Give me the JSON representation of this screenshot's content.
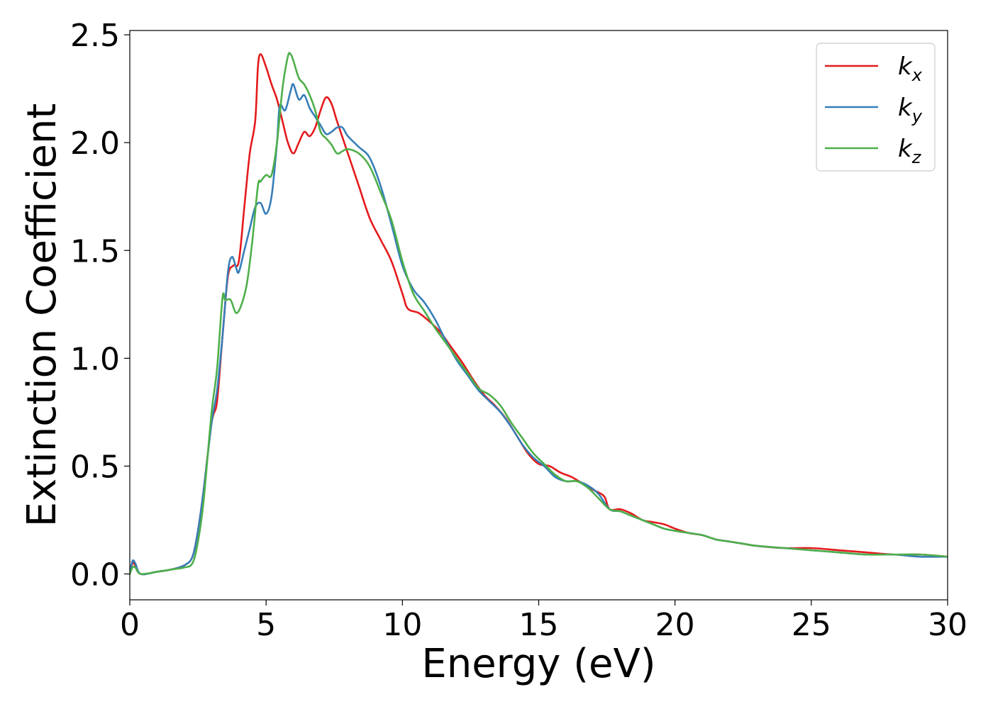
{
  "chart_data": {
    "type": "line",
    "xlabel": "Energy (eV)",
    "ylabel": "Extinction Coefficient",
    "xlim": [
      0,
      30
    ],
    "ylim": [
      -0.12,
      2.52
    ],
    "xticks": [
      0,
      5,
      10,
      15,
      20,
      25,
      30
    ],
    "yticks": [
      0.0,
      0.5,
      1.0,
      1.5,
      2.0,
      2.5
    ],
    "xtick_labels": [
      "0",
      "5",
      "10",
      "15",
      "20",
      "25",
      "30"
    ],
    "ytick_labels": [
      "0.0",
      "0.5",
      "1.0",
      "1.5",
      "2.0",
      "2.5"
    ],
    "grid": false,
    "legend_position": "top-right",
    "series": [
      {
        "name": "k",
        "subscript": "x",
        "color": "#e41a1c",
        "points": [
          [
            0,
            0.0
          ],
          [
            0.1,
            0.05
          ],
          [
            0.2,
            0.04
          ],
          [
            0.4,
            0.0
          ],
          [
            1,
            0.01
          ],
          [
            1.5,
            0.02
          ],
          [
            2,
            0.04
          ],
          [
            2.3,
            0.08
          ],
          [
            2.5,
            0.2
          ],
          [
            2.7,
            0.38
          ],
          [
            3.0,
            0.7
          ],
          [
            3.2,
            0.8
          ],
          [
            3.4,
            1.1
          ],
          [
            3.6,
            1.38
          ],
          [
            3.8,
            1.43
          ],
          [
            4.0,
            1.45
          ],
          [
            4.2,
            1.7
          ],
          [
            4.4,
            1.95
          ],
          [
            4.6,
            2.1
          ],
          [
            4.7,
            2.35
          ],
          [
            4.8,
            2.41
          ],
          [
            5.0,
            2.35
          ],
          [
            5.2,
            2.27
          ],
          [
            5.4,
            2.2
          ],
          [
            5.6,
            2.1
          ],
          [
            5.8,
            2.0
          ],
          [
            6.0,
            1.95
          ],
          [
            6.2,
            2.0
          ],
          [
            6.4,
            2.05
          ],
          [
            6.6,
            2.03
          ],
          [
            6.8,
            2.07
          ],
          [
            7.0,
            2.15
          ],
          [
            7.2,
            2.21
          ],
          [
            7.4,
            2.18
          ],
          [
            7.6,
            2.1
          ],
          [
            8.0,
            1.95
          ],
          [
            8.4,
            1.8
          ],
          [
            8.8,
            1.65
          ],
          [
            9.2,
            1.55
          ],
          [
            9.6,
            1.45
          ],
          [
            10.0,
            1.3
          ],
          [
            10.2,
            1.23
          ],
          [
            10.6,
            1.21
          ],
          [
            11.0,
            1.17
          ],
          [
            11.4,
            1.12
          ],
          [
            11.8,
            1.05
          ],
          [
            12.2,
            0.98
          ],
          [
            12.6,
            0.9
          ],
          [
            13.0,
            0.83
          ],
          [
            13.4,
            0.78
          ],
          [
            13.8,
            0.72
          ],
          [
            14.2,
            0.64
          ],
          [
            14.6,
            0.56
          ],
          [
            15.0,
            0.51
          ],
          [
            15.4,
            0.5
          ],
          [
            15.8,
            0.47
          ],
          [
            16.2,
            0.45
          ],
          [
            16.6,
            0.42
          ],
          [
            17.0,
            0.39
          ],
          [
            17.4,
            0.36
          ],
          [
            17.6,
            0.3
          ],
          [
            18.0,
            0.3
          ],
          [
            18.4,
            0.28
          ],
          [
            18.8,
            0.25
          ],
          [
            19.2,
            0.24
          ],
          [
            19.6,
            0.23
          ],
          [
            20.0,
            0.21
          ],
          [
            20.5,
            0.19
          ],
          [
            21.0,
            0.18
          ],
          [
            21.5,
            0.16
          ],
          [
            22.0,
            0.15
          ],
          [
            22.5,
            0.14
          ],
          [
            23.0,
            0.13
          ],
          [
            24.0,
            0.12
          ],
          [
            25.0,
            0.12
          ],
          [
            26.0,
            0.11
          ],
          [
            27.0,
            0.1
          ],
          [
            28.0,
            0.09
          ],
          [
            29.0,
            0.09
          ],
          [
            30.0,
            0.08
          ]
        ]
      },
      {
        "name": "k",
        "subscript": "y",
        "color": "#377eb8",
        "points": [
          [
            0,
            0.0
          ],
          [
            0.1,
            0.06
          ],
          [
            0.2,
            0.05
          ],
          [
            0.4,
            0.0
          ],
          [
            1,
            0.01
          ],
          [
            1.5,
            0.02
          ],
          [
            2,
            0.04
          ],
          [
            2.3,
            0.08
          ],
          [
            2.5,
            0.2
          ],
          [
            2.7,
            0.38
          ],
          [
            3.0,
            0.7
          ],
          [
            3.2,
            0.85
          ],
          [
            3.4,
            1.1
          ],
          [
            3.6,
            1.4
          ],
          [
            3.75,
            1.47
          ],
          [
            3.9,
            1.42
          ],
          [
            4.0,
            1.4
          ],
          [
            4.2,
            1.5
          ],
          [
            4.4,
            1.6
          ],
          [
            4.6,
            1.7
          ],
          [
            4.8,
            1.72
          ],
          [
            5.0,
            1.67
          ],
          [
            5.2,
            1.75
          ],
          [
            5.4,
            2.0
          ],
          [
            5.5,
            2.17
          ],
          [
            5.7,
            2.15
          ],
          [
            5.9,
            2.24
          ],
          [
            6.0,
            2.27
          ],
          [
            6.2,
            2.2
          ],
          [
            6.4,
            2.22
          ],
          [
            6.6,
            2.16
          ],
          [
            6.8,
            2.12
          ],
          [
            7.0,
            2.08
          ],
          [
            7.2,
            2.04
          ],
          [
            7.4,
            2.05
          ],
          [
            7.6,
            2.07
          ],
          [
            7.8,
            2.07
          ],
          [
            8.0,
            2.03
          ],
          [
            8.4,
            1.98
          ],
          [
            8.8,
            1.93
          ],
          [
            9.2,
            1.8
          ],
          [
            9.6,
            1.62
          ],
          [
            10.0,
            1.43
          ],
          [
            10.4,
            1.32
          ],
          [
            10.8,
            1.26
          ],
          [
            11.2,
            1.18
          ],
          [
            11.6,
            1.08
          ],
          [
            12.0,
            0.99
          ],
          [
            12.4,
            0.92
          ],
          [
            12.8,
            0.85
          ],
          [
            13.2,
            0.8
          ],
          [
            13.6,
            0.75
          ],
          [
            14.0,
            0.68
          ],
          [
            14.4,
            0.6
          ],
          [
            14.8,
            0.54
          ],
          [
            15.2,
            0.5
          ],
          [
            15.6,
            0.45
          ],
          [
            16.0,
            0.43
          ],
          [
            16.4,
            0.43
          ],
          [
            16.8,
            0.41
          ],
          [
            17.2,
            0.37
          ],
          [
            17.6,
            0.3
          ],
          [
            18.0,
            0.29
          ],
          [
            18.4,
            0.27
          ],
          [
            18.8,
            0.25
          ],
          [
            19.2,
            0.23
          ],
          [
            19.6,
            0.21
          ],
          [
            20.0,
            0.2
          ],
          [
            20.5,
            0.19
          ],
          [
            21.0,
            0.18
          ],
          [
            21.5,
            0.16
          ],
          [
            22.0,
            0.15
          ],
          [
            22.5,
            0.14
          ],
          [
            23.0,
            0.13
          ],
          [
            24.0,
            0.12
          ],
          [
            25.0,
            0.11
          ],
          [
            26.0,
            0.1
          ],
          [
            27.0,
            0.09
          ],
          [
            28.0,
            0.09
          ],
          [
            29.0,
            0.08
          ],
          [
            30.0,
            0.08
          ]
        ]
      },
      {
        "name": "k",
        "subscript": "z",
        "color": "#4daf4a",
        "points": [
          [
            0,
            0.0
          ],
          [
            0.1,
            0.03
          ],
          [
            0.2,
            0.03
          ],
          [
            0.4,
            0.0
          ],
          [
            1,
            0.01
          ],
          [
            1.5,
            0.02
          ],
          [
            2,
            0.03
          ],
          [
            2.3,
            0.05
          ],
          [
            2.5,
            0.15
          ],
          [
            2.7,
            0.33
          ],
          [
            3.0,
            0.75
          ],
          [
            3.2,
            0.95
          ],
          [
            3.4,
            1.28
          ],
          [
            3.5,
            1.27
          ],
          [
            3.7,
            1.27
          ],
          [
            3.9,
            1.21
          ],
          [
            4.1,
            1.25
          ],
          [
            4.3,
            1.35
          ],
          [
            4.5,
            1.55
          ],
          [
            4.7,
            1.8
          ],
          [
            4.8,
            1.82
          ],
          [
            5.0,
            1.85
          ],
          [
            5.2,
            1.85
          ],
          [
            5.4,
            2.0
          ],
          [
            5.6,
            2.25
          ],
          [
            5.8,
            2.4
          ],
          [
            5.9,
            2.41
          ],
          [
            6.0,
            2.38
          ],
          [
            6.2,
            2.3
          ],
          [
            6.4,
            2.27
          ],
          [
            6.6,
            2.22
          ],
          [
            6.8,
            2.15
          ],
          [
            7.0,
            2.05
          ],
          [
            7.2,
            2.02
          ],
          [
            7.4,
            1.99
          ],
          [
            7.6,
            1.95
          ],
          [
            7.8,
            1.96
          ],
          [
            8.0,
            1.97
          ],
          [
            8.4,
            1.95
          ],
          [
            8.8,
            1.89
          ],
          [
            9.2,
            1.77
          ],
          [
            9.6,
            1.64
          ],
          [
            10.0,
            1.45
          ],
          [
            10.4,
            1.3
          ],
          [
            10.8,
            1.22
          ],
          [
            11.2,
            1.14
          ],
          [
            11.6,
            1.07
          ],
          [
            12.0,
            1.0
          ],
          [
            12.4,
            0.93
          ],
          [
            12.8,
            0.86
          ],
          [
            13.2,
            0.83
          ],
          [
            13.6,
            0.78
          ],
          [
            14.0,
            0.7
          ],
          [
            14.4,
            0.63
          ],
          [
            14.8,
            0.56
          ],
          [
            15.2,
            0.51
          ],
          [
            15.6,
            0.46
          ],
          [
            16.0,
            0.43
          ],
          [
            16.4,
            0.43
          ],
          [
            16.8,
            0.4
          ],
          [
            17.2,
            0.35
          ],
          [
            17.6,
            0.3
          ],
          [
            18.0,
            0.29
          ],
          [
            18.4,
            0.27
          ],
          [
            18.8,
            0.25
          ],
          [
            19.2,
            0.23
          ],
          [
            19.6,
            0.21
          ],
          [
            20.0,
            0.2
          ],
          [
            20.5,
            0.19
          ],
          [
            21.0,
            0.18
          ],
          [
            21.5,
            0.16
          ],
          [
            22.0,
            0.15
          ],
          [
            22.5,
            0.14
          ],
          [
            23.0,
            0.13
          ],
          [
            24.0,
            0.12
          ],
          [
            25.0,
            0.11
          ],
          [
            26.0,
            0.1
          ],
          [
            27.0,
            0.09
          ],
          [
            28.0,
            0.09
          ],
          [
            29.0,
            0.09
          ],
          [
            30.0,
            0.08
          ]
        ]
      }
    ]
  }
}
